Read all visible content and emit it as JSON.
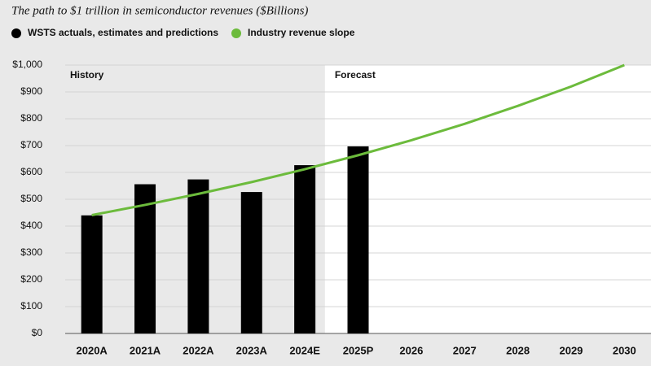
{
  "chart_data": {
    "type": "bar",
    "title": "The path to $1 trillion in semiconductor revenues ($Billions)",
    "categories": [
      "2020A",
      "2021A",
      "2022A",
      "2023A",
      "2024E",
      "2025P",
      "2026",
      "2027",
      "2028",
      "2029",
      "2030"
    ],
    "series": [
      {
        "name": "WSTS actuals, estimates and predictions",
        "type": "bar",
        "color": "#000000",
        "values": [
          440,
          556,
          574,
          527,
          627,
          697,
          null,
          null,
          null,
          null,
          null
        ]
      },
      {
        "name": "Industry revenue slope",
        "type": "line",
        "color": "#6cbb3c",
        "values": [
          441,
          479,
          520,
          564,
          612,
          664,
          720,
          781,
          848,
          920,
          1000
        ]
      }
    ],
    "annotations": [
      {
        "text": "History"
      },
      {
        "text": "Forecast",
        "from_category": "2025P"
      }
    ],
    "ylim": [
      0,
      1000
    ],
    "yticks": [
      {
        "value": 0,
        "label": "$0"
      },
      {
        "value": 100,
        "label": "$100"
      },
      {
        "value": 200,
        "label": "$200"
      },
      {
        "value": 300,
        "label": "$300"
      },
      {
        "value": 400,
        "label": "$400"
      },
      {
        "value": 500,
        "label": "$500"
      },
      {
        "value": 600,
        "label": "$600"
      },
      {
        "value": 700,
        "label": "$700"
      },
      {
        "value": 800,
        "label": "$800"
      },
      {
        "value": 900,
        "label": "$900"
      },
      {
        "value": 1000,
        "label": "$1,000"
      }
    ],
    "grid": true
  }
}
